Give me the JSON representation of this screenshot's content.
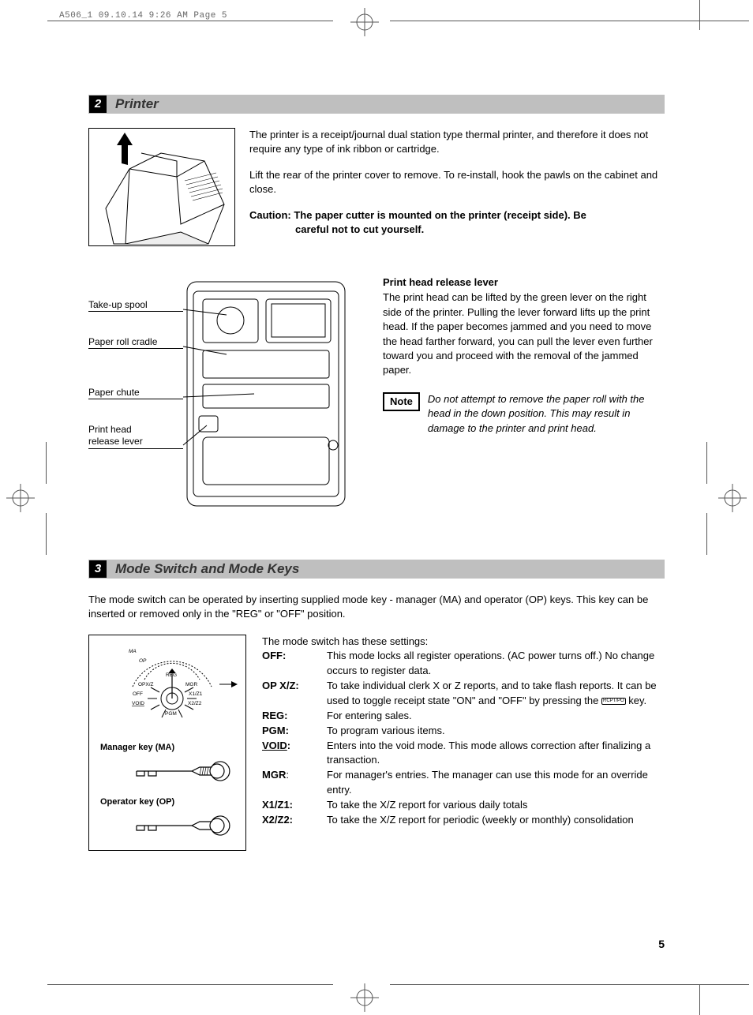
{
  "header": "A506_1  09.10.14 9:26 AM  Page 5",
  "section2": {
    "num": "2",
    "title": "Printer",
    "para1": "The printer is a receipt/journal dual station type thermal printer, and therefore it does not require any type of ink ribbon or cartridge.",
    "para2": "Lift the rear of the printer cover to remove.  To re-install, hook the pawls on the cabinet and close.",
    "caution_lead": "Caution: The paper cutter is mounted on the printer (receipt side).  Be",
    "caution_cont": "careful not to cut yourself.",
    "labels": {
      "takeup": "Take-up spool",
      "cradle": "Paper roll cradle",
      "chute": "Paper chute",
      "lever1": "Print head",
      "lever2": "release lever"
    },
    "release_head": "Print head release lever",
    "release_body": "The print head can be lifted by the green lever on the right side of the printer.  Pulling the lever forward lifts up the print head. If the paper becomes jammed and you need to move the head farther forward, you can pull the lever even further toward you and proceed with the removal of the jammed paper.",
    "note_label": "Note",
    "note_body": "Do not attempt to remove the paper roll with the head in the down position.  This may result in damage to the printer and print head."
  },
  "section3": {
    "num": "3",
    "title": "Mode Switch and Mode Keys",
    "intro": "The mode switch can be operated by inserting supplied mode key - manager (MA) and operator (OP) keys. This key can be inserted or removed only in the \"REG\" or \"OFF\" position.",
    "dial_labels": {
      "ma": "MA",
      "op": "OP",
      "reg": "REG",
      "opxz": "OPX/Z",
      "mgr": "MGR",
      "off": "OFF",
      "x1z1": "X1/Z1",
      "void": "VOID",
      "x2z2": "X2/Z2",
      "pgm": "PGM"
    },
    "ma_key": "Manager key (MA)",
    "op_key": "Operator key (OP)",
    "settings_intro": "The mode switch has these settings:",
    "rows": [
      {
        "k": "OFF:",
        "v": "This mode locks all register operations. (AC power turns off.) No change occurs to register data."
      },
      {
        "k": "OP X/Z:",
        "v": "To take individual clerk X or Z reports, and to take flash reports. It can be used to toggle receipt state \"ON\" and \"OFF\" by pressing the",
        "key_after": "RCPT/PO",
        "v_after": " key."
      },
      {
        "k": "REG:",
        "v": "For entering sales."
      },
      {
        "k": "PGM:",
        "v": "To program various items."
      },
      {
        "k": "VOID:",
        "u": true,
        "v": "Enters into the void mode.  This mode allows correction after finalizing a transaction."
      },
      {
        "k": "MGR",
        "colon": ":",
        "nb": true,
        "v": "For manager's entries.  The manager can use this mode for an override entry."
      },
      {
        "k": "X1/Z1:",
        "v": "To take the X/Z report for various daily totals"
      },
      {
        "k": "X2/Z2:",
        "v": "To take the X/Z report for periodic (weekly or monthly) consolidation"
      }
    ]
  },
  "page_num": "5",
  "colors": {
    "section_bg": "#bfbfbf",
    "section_title": "#333333"
  }
}
